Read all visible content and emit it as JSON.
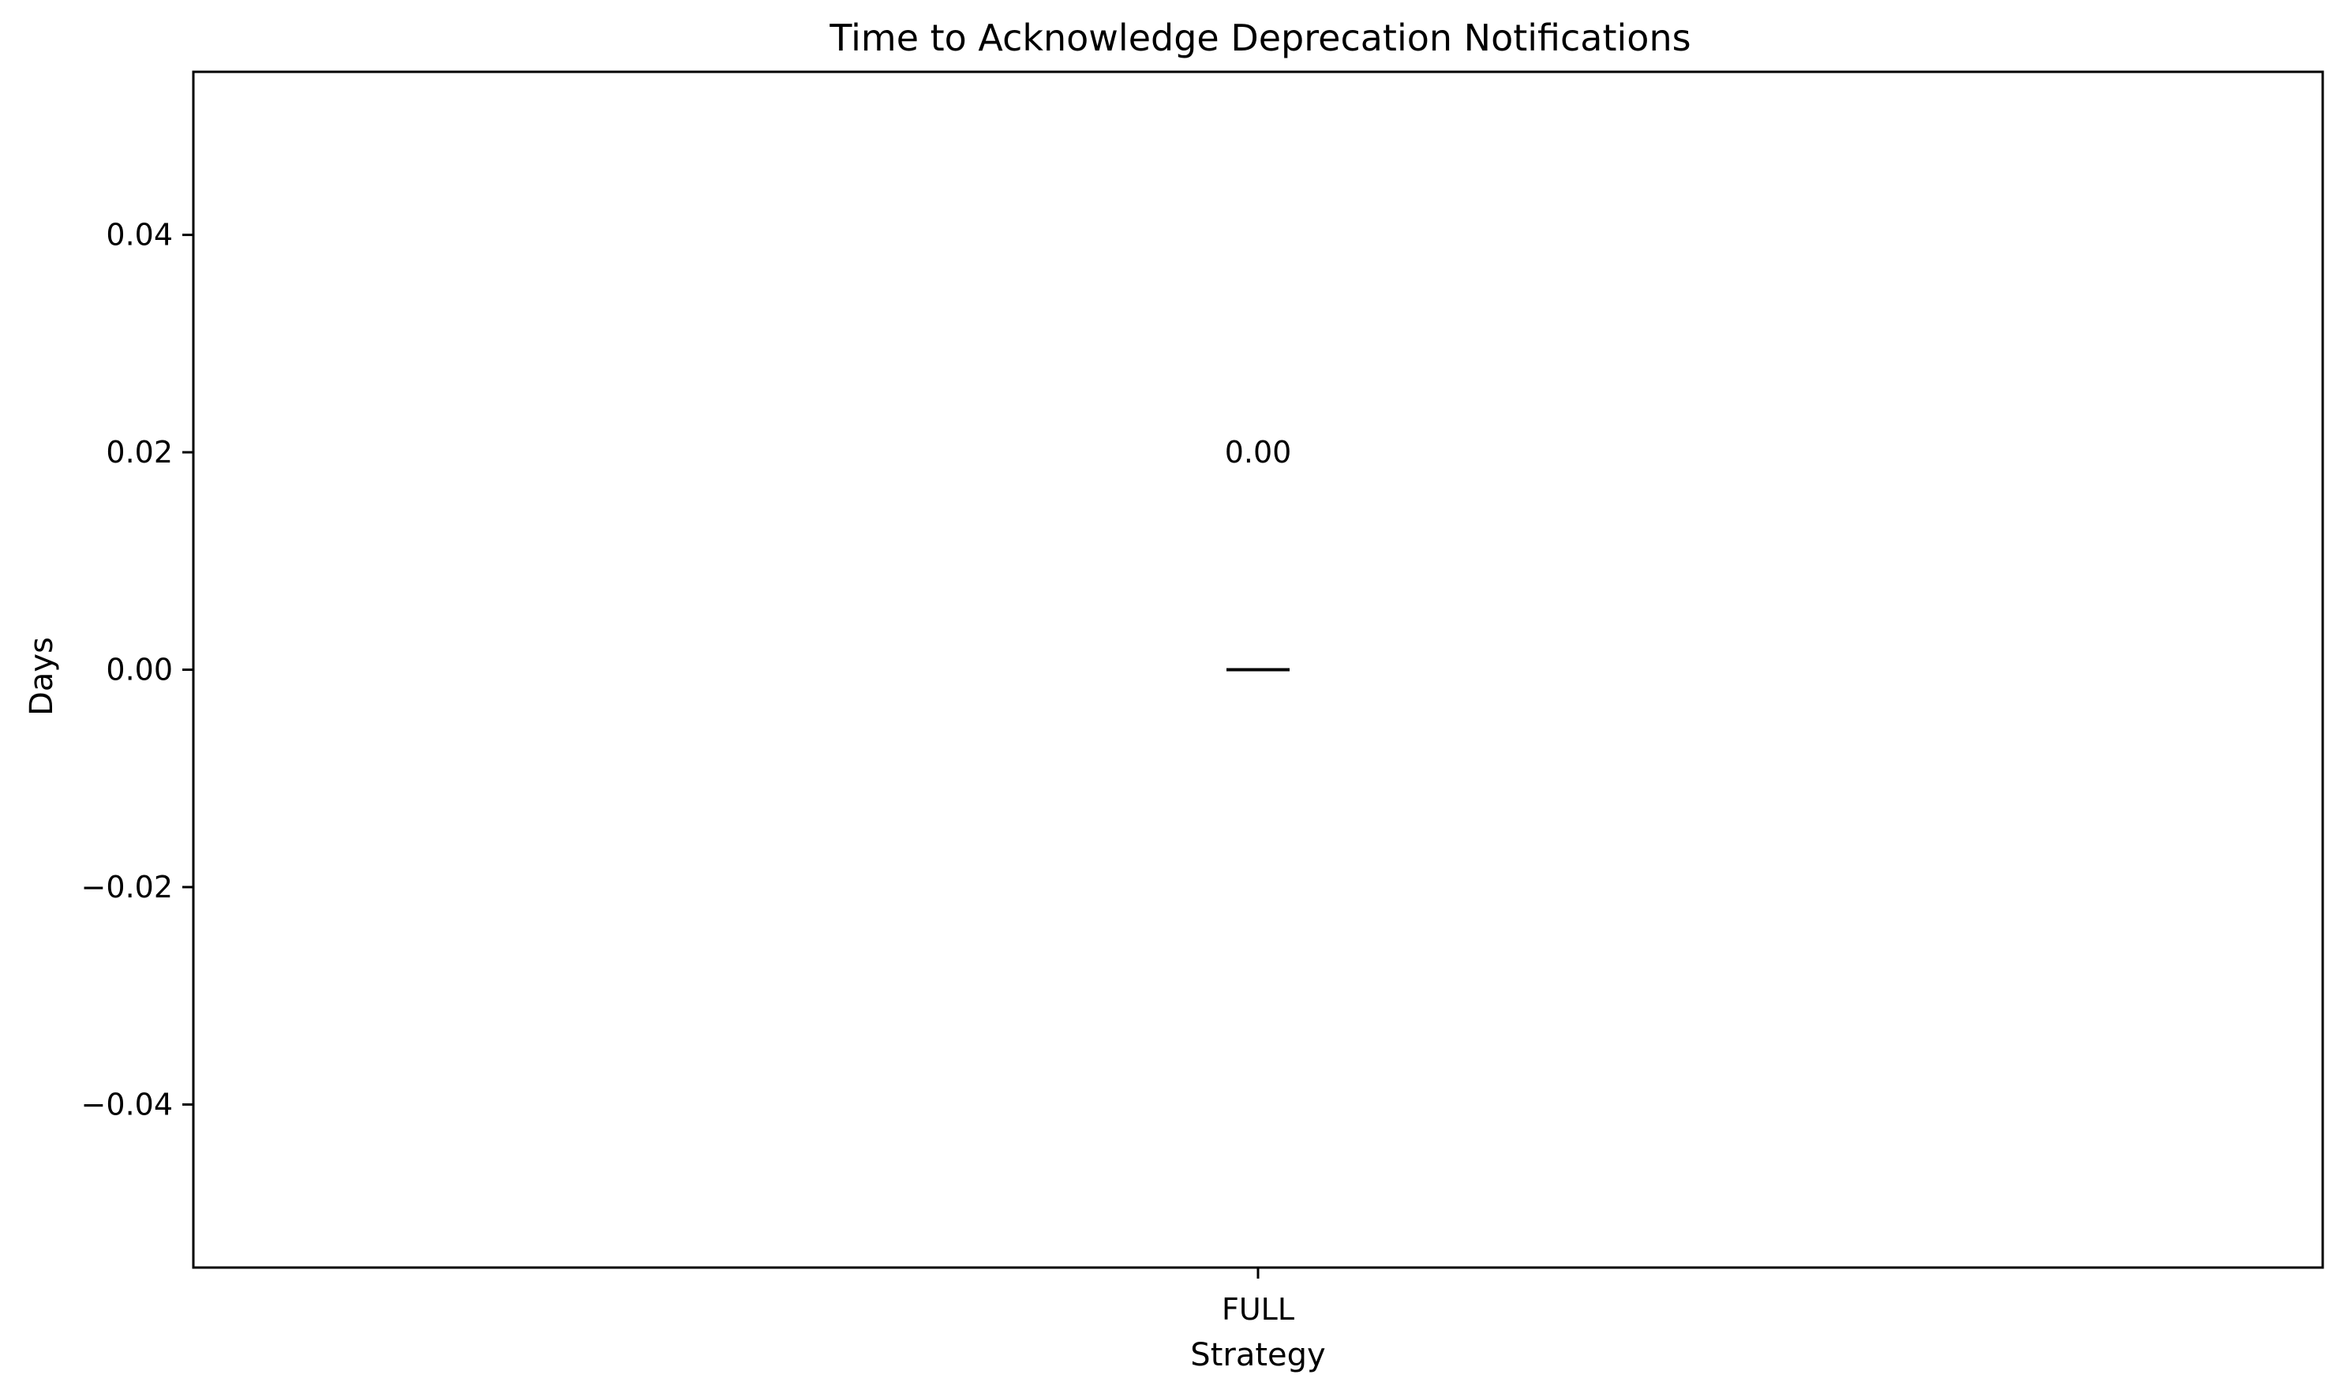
{
  "chart_data": {
    "type": "box",
    "title": "Time to Acknowledge Deprecation Notifications",
    "xlabel": "Strategy",
    "ylabel": "Days",
    "categories": [
      "FULL"
    ],
    "series": [
      {
        "values": [
          {
            "min": 0,
            "q1": 0,
            "median": 0,
            "q3": 0,
            "max": 0
          }
        ]
      }
    ],
    "annotations": [
      {
        "category": "FULL",
        "y": 0.02,
        "text": "0.00"
      }
    ],
    "yticks": [
      0.04,
      0.02,
      0.0,
      -0.02,
      -0.04
    ],
    "ytick_labels": [
      "0.04",
      "0.02",
      "0.00",
      "−0.02",
      "−0.04"
    ],
    "ylim": [
      -0.055,
      0.055
    ],
    "grid": false,
    "legend": "none"
  }
}
